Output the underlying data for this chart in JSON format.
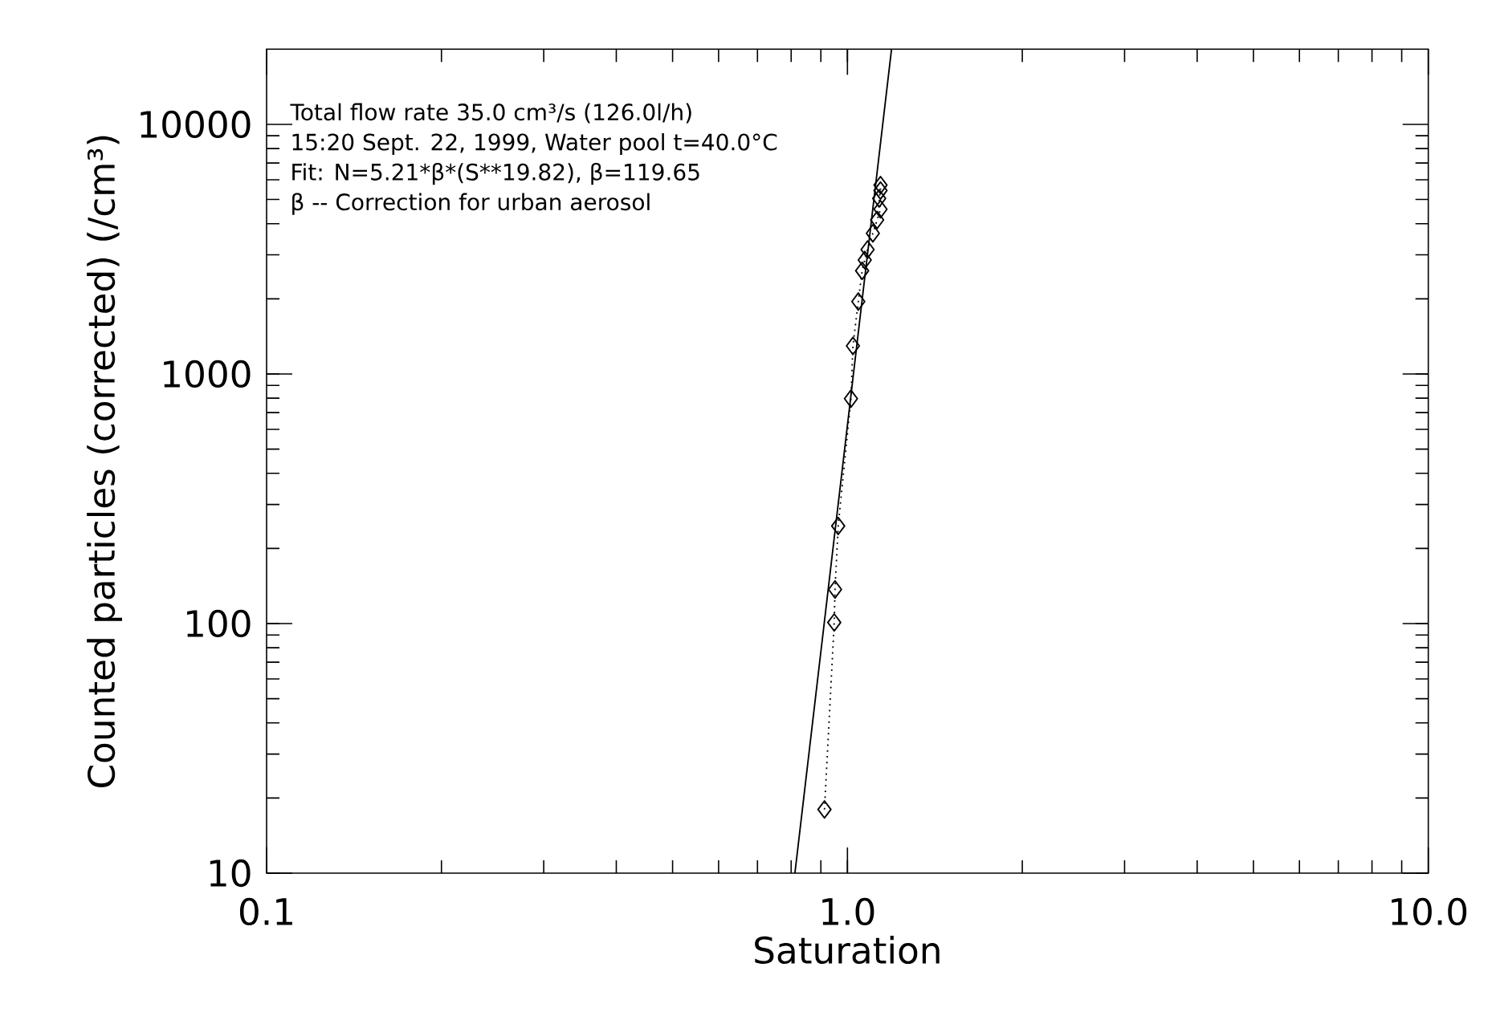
{
  "chart_data": {
    "type": "line",
    "xlabel": "Saturation",
    "ylabel": "Counted particles (corrected) (/cm³)",
    "log": "xy",
    "xlim": [
      0.1,
      10
    ],
    "ylim": [
      10,
      20000
    ],
    "xticks": [
      {
        "value": 0.1,
        "label": "0.1"
      },
      {
        "value": 1,
        "label": "1.0"
      },
      {
        "value": 10,
        "label": "10.0"
      }
    ],
    "yticks": [
      10,
      100,
      1000,
      10000
    ],
    "annotations": [
      "Total flow rate 35.0 cm³/s (126.0l/h)",
      "15:20 Sept. 22, 1999, Water pool t=40.0°C",
      "Fit: N=5.21*β*(S**19.82), β=119.65",
      "β -- Correction for urban aerosol"
    ],
    "series": [
      {
        "color": "#000000",
        "marker": "diamond",
        "line_style": "dotted",
        "x": [
          0.913,
          0.949,
          0.952,
          0.964,
          1.014,
          1.022,
          1.044,
          1.06,
          1.071,
          1.083,
          1.106,
          1.125,
          1.14,
          1.134,
          1.14,
          1.14
        ],
        "values": [
          18,
          101,
          137,
          246,
          796,
          1295,
          1950,
          2590,
          2860,
          3150,
          3660,
          4140,
          4570,
          5050,
          5430,
          5710
        ]
      },
      {
        "color": "#000000",
        "marker": "none",
        "line_style": "solid",
        "x": [
          0.812,
          1.0,
          1.191
        ],
        "values": [
          10,
          623,
          20000
        ]
      }
    ]
  }
}
